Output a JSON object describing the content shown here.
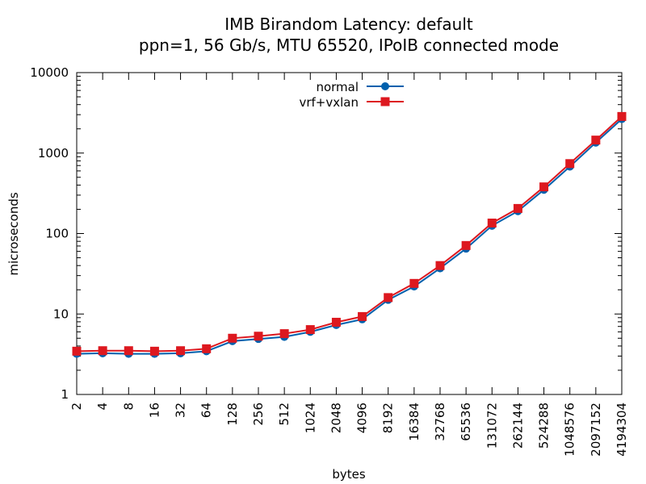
{
  "chart_data": {
    "type": "line",
    "title": "IMB Birandom Latency: default",
    "subtitle": "ppn=1, 56 Gb/s, MTU 65520, IPoIB connected mode",
    "xlabel": "bytes",
    "ylabel": "microseconds",
    "x_scale": "log2",
    "y_scale": "log10",
    "xlim": [
      2,
      4194304
    ],
    "ylim": [
      1,
      10000
    ],
    "grid": false,
    "legend_position": "top-center",
    "x": [
      2,
      4,
      8,
      16,
      32,
      64,
      128,
      256,
      512,
      1024,
      2048,
      4096,
      8192,
      16384,
      32768,
      65536,
      131072,
      262144,
      524288,
      1048576,
      2097152,
      4194304
    ],
    "x_tick_labels": [
      "2",
      "4",
      "8",
      "16",
      "32",
      "64",
      "128",
      "256",
      "512",
      "1024",
      "2048",
      "4096",
      "8192",
      "16384",
      "32768",
      "65536",
      "131072",
      "262144",
      "524288",
      "1048576",
      "2097152",
      "4194304"
    ],
    "y_ticks": [
      1,
      10,
      100,
      1000,
      10000
    ],
    "y_tick_labels": [
      "1",
      "10",
      "100",
      "1000",
      "10000"
    ],
    "series": [
      {
        "name": "normal",
        "color": "#0060ad",
        "marker": "circle",
        "values": [
          3.2,
          3.25,
          3.2,
          3.2,
          3.25,
          3.45,
          4.6,
          4.9,
          5.2,
          6.0,
          7.3,
          8.6,
          15,
          22,
          37,
          65,
          125,
          190,
          350,
          680,
          1350,
          2650
        ]
      },
      {
        "name": "vrf+vxlan",
        "color": "#dd181f",
        "marker": "square",
        "values": [
          3.45,
          3.5,
          3.5,
          3.45,
          3.5,
          3.7,
          5.0,
          5.3,
          5.7,
          6.4,
          7.9,
          9.3,
          16,
          24,
          40,
          71,
          135,
          205,
          380,
          740,
          1450,
          2850
        ]
      }
    ]
  }
}
